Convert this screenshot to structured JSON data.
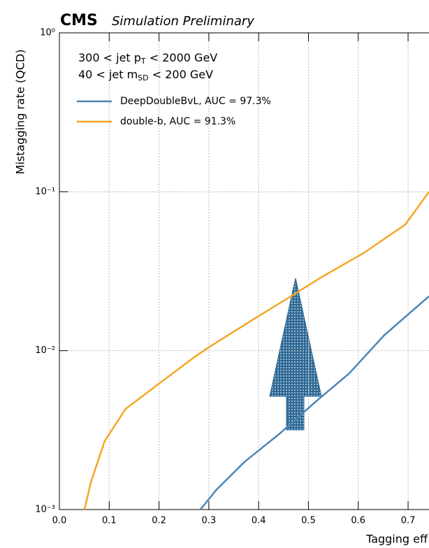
{
  "chart_data": {
    "type": "line",
    "title": "CMS",
    "subtitle": "Simulation Preliminary",
    "annotations": [
      [
        "300 <  jet p",
        "T",
        "  < 2000 GeV"
      ],
      [
        "40 <  jet m",
        "SD",
        "  < 200 GeV"
      ]
    ],
    "xlabel": "Tagging eff",
    "ylabel": "Mistagging rate (QCD)",
    "yscale": "log",
    "grid": true,
    "legend": "upper left",
    "xlim": [
      0,
      0.742
    ],
    "ylim": [
      0.001,
      1
    ],
    "xticks": [
      {
        "value": 0,
        "label": "0.0"
      },
      0.1,
      0.2,
      0.3,
      0.4,
      0.5,
      0.6,
      0.7
    ],
    "yticks": [
      {
        "value": 0.001,
        "label": "10⁻³"
      },
      {
        "value": 0.01,
        "label": "10⁻²"
      },
      {
        "value": 0.1,
        "label": "10⁻¹"
      },
      {
        "value": 1,
        "label": "10⁰"
      }
    ],
    "series": [
      {
        "name": "DeepDoubleBvL, AUC = 97.3%",
        "color": "#4a86b8",
        "x": [
          0.283,
          0.316,
          0.372,
          0.442,
          0.512,
          0.582,
          0.652,
          0.742
        ],
        "values": [
          0.001,
          0.00134,
          0.002,
          0.003,
          0.0047,
          0.0072,
          0.0125,
          0.022
        ]
      },
      {
        "name": "double-b, AUC = 91.3%",
        "color": "#f5a623",
        "x": [
          0.0505,
          0.063,
          0.091,
          0.133,
          0.203,
          0.273,
          0.3,
          0.4,
          0.47,
          0.526,
          0.61,
          0.694,
          0.742
        ],
        "values": [
          0.001,
          0.00148,
          0.0027,
          0.0043,
          0.0063,
          0.0092,
          0.0105,
          0.0165,
          0.0225,
          0.029,
          0.041,
          0.062,
          0.1
        ]
      }
    ]
  }
}
